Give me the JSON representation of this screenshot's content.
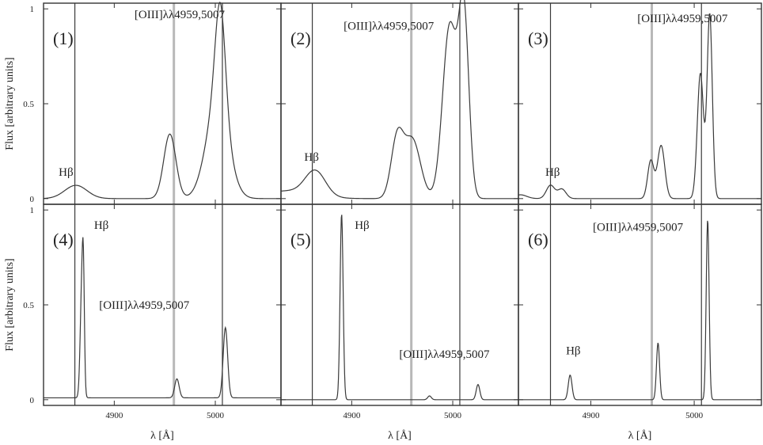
{
  "chart_data": {
    "type": "line",
    "layout": "2x3 grid",
    "xlabel": "λ [Å]",
    "ylabel": "Flux [arbitrary units]",
    "xlim": [
      4830,
      5065
    ],
    "ylim": [
      -0.03,
      1.03
    ],
    "xticks": [
      {
        "value": 4900,
        "label": "4900"
      },
      {
        "value": 5000,
        "label": "5000"
      }
    ],
    "yticks": [
      {
        "value": 0,
        "label": "0"
      },
      {
        "value": 0.5,
        "label": "0.5"
      },
      {
        "value": 1,
        "label": "1"
      }
    ],
    "reference_lines": [
      {
        "x": 4861,
        "style": "dark"
      },
      {
        "x": 4959,
        "style": "grey"
      },
      {
        "x": 5007,
        "style": "dark"
      }
    ],
    "panels": [
      {
        "id": "(1)",
        "labels": [
          {
            "text": "Hβ",
            "x": 4845,
            "y": 0.12
          },
          {
            "text": "[OIII]λλ4959,5007",
            "x": 4920,
            "y": 0.95
          }
        ],
        "continuum": 0.0,
        "peaks": [
          {
            "x": 4862,
            "height": 0.07,
            "width": 11
          },
          {
            "x": 4955,
            "height": 0.34,
            "width": 6
          },
          {
            "x": 5002,
            "height": 0.5,
            "width": 11
          },
          {
            "x": 5005,
            "height": 0.55,
            "width": 5
          }
        ]
      },
      {
        "id": "(2)",
        "labels": [
          {
            "text": "Hβ",
            "x": 4853,
            "y": 0.2
          },
          {
            "text": "[OIII]λλ4959,5007",
            "x": 4892,
            "y": 0.89
          }
        ],
        "continuum": 0.0,
        "peaks": [
          {
            "x": 4864,
            "height": 0.13,
            "width": 10
          },
          {
            "x": 4835,
            "height": 0.04,
            "width": 25
          },
          {
            "x": 4945,
            "height": 0.31,
            "width": 6
          },
          {
            "x": 4960,
            "height": 0.31,
            "width": 8
          },
          {
            "x": 4997,
            "height": 0.91,
            "width": 7
          },
          {
            "x": 5011,
            "height": 0.95,
            "width": 5
          }
        ]
      },
      {
        "id": "(3)",
        "labels": [
          {
            "text": "Hβ",
            "x": 4856,
            "y": 0.12
          },
          {
            "text": "[OIII]λλ4959,5007",
            "x": 4945,
            "y": 0.93
          }
        ],
        "continuum": 0.0,
        "peaks": [
          {
            "x": 4832,
            "height": 0.02,
            "width": 6
          },
          {
            "x": 4861,
            "height": 0.07,
            "width": 4
          },
          {
            "x": 4872,
            "height": 0.05,
            "width": 4
          },
          {
            "x": 4958,
            "height": 0.2,
            "width": 3
          },
          {
            "x": 4968,
            "height": 0.28,
            "width": 3.5
          },
          {
            "x": 5006,
            "height": 0.66,
            "width": 3
          },
          {
            "x": 5015,
            "height": 0.97,
            "width": 2.5
          }
        ]
      },
      {
        "id": "(4)",
        "labels": [
          {
            "text": "Hβ",
            "x": 4880,
            "y": 0.9
          },
          {
            "text": "[OIII]λλ4959,5007",
            "x": 4885,
            "y": 0.48
          }
        ],
        "continuum": 0.01,
        "peaks": [
          {
            "x": 4868,
            "height": 0.6,
            "width": 1.6
          },
          {
            "x": 4869.5,
            "height": 0.4,
            "width": 1.0
          },
          {
            "x": 4962,
            "height": 0.1,
            "width": 2.2
          },
          {
            "x": 5010,
            "height": 0.37,
            "width": 2.2
          }
        ]
      },
      {
        "id": "(5)",
        "labels": [
          {
            "text": "Hβ",
            "x": 4903,
            "y": 0.9
          },
          {
            "text": "[OIII]λλ4959,5007",
            "x": 4947,
            "y": 0.22
          }
        ],
        "continuum": 0.0,
        "peaks": [
          {
            "x": 4890,
            "height": 0.98,
            "width": 1.5
          },
          {
            "x": 4977,
            "height": 0.02,
            "width": 1.8
          },
          {
            "x": 5025,
            "height": 0.08,
            "width": 1.8
          }
        ]
      },
      {
        "id": "(6)",
        "labels": [
          {
            "text": "Hβ",
            "x": 4876,
            "y": 0.24
          },
          {
            "text": "[OIII]λλ4959,5007",
            "x": 4902,
            "y": 0.89
          }
        ],
        "continuum": 0.0,
        "peaks": [
          {
            "x": 4880,
            "height": 0.13,
            "width": 1.8
          },
          {
            "x": 4965,
            "height": 0.3,
            "width": 1.5
          },
          {
            "x": 5013,
            "height": 0.95,
            "width": 1.4
          }
        ]
      }
    ]
  }
}
